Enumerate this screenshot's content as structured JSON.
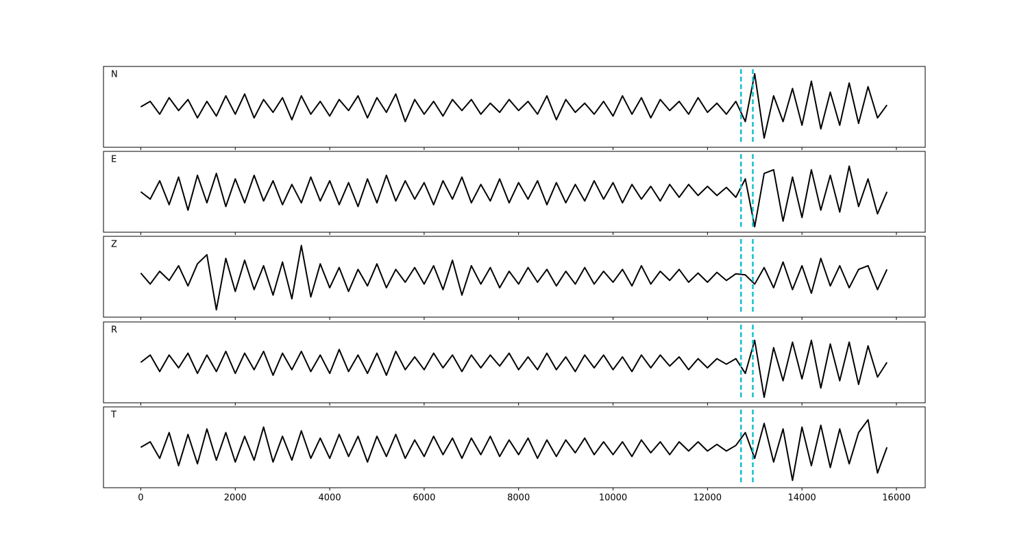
{
  "chart_data": {
    "type": "line",
    "x": [
      0,
      200,
      400,
      600,
      800,
      1000,
      1200,
      1400,
      1600,
      1800,
      2000,
      2200,
      2400,
      2600,
      2800,
      3000,
      3200,
      3400,
      3600,
      3800,
      4000,
      4200,
      4400,
      4600,
      4800,
      5000,
      5200,
      5400,
      5600,
      5800,
      6000,
      6200,
      6400,
      6600,
      6800,
      7000,
      7200,
      7400,
      7600,
      7800,
      8000,
      8200,
      8400,
      8600,
      8800,
      9000,
      9200,
      9400,
      9600,
      9800,
      10000,
      10200,
      10400,
      10600,
      10800,
      11000,
      11200,
      11400,
      11600,
      11800,
      12000,
      12200,
      12400,
      12600,
      12800,
      13000,
      13200,
      13400,
      13600,
      13800,
      14000,
      14200,
      14400,
      14600,
      14800,
      15000,
      15200,
      15400,
      15600,
      15800
    ],
    "series": [
      {
        "name": "N",
        "color": "#000000",
        "values": [
          0,
          0.15,
          -0.2,
          0.25,
          -0.1,
          0.2,
          -0.3,
          0.15,
          -0.25,
          0.3,
          -0.2,
          0.35,
          -0.3,
          0.2,
          -0.15,
          0.25,
          -0.35,
          0.3,
          -0.2,
          0.15,
          -0.25,
          0.2,
          -0.1,
          0.3,
          -0.3,
          0.25,
          -0.15,
          0.35,
          -0.4,
          0.2,
          -0.2,
          0.15,
          -0.25,
          0.2,
          -0.1,
          0.2,
          -0.2,
          0.1,
          -0.15,
          0.2,
          -0.1,
          0.15,
          -0.2,
          0.3,
          -0.35,
          0.2,
          -0.15,
          0.1,
          -0.2,
          0.15,
          -0.25,
          0.3,
          -0.2,
          0.25,
          -0.3,
          0.2,
          -0.1,
          0.15,
          -0.2,
          0.25,
          -0.15,
          0.1,
          -0.2,
          0.15,
          -0.4,
          0.9,
          -0.85,
          0.3,
          -0.4,
          0.5,
          -0.5,
          0.7,
          -0.6,
          0.4,
          -0.5,
          0.65,
          -0.45,
          0.55,
          -0.3,
          0.05
        ]
      },
      {
        "name": "E",
        "color": "#000000",
        "values": [
          0,
          -0.2,
          0.3,
          -0.35,
          0.4,
          -0.5,
          0.45,
          -0.3,
          0.5,
          -0.4,
          0.35,
          -0.3,
          0.45,
          -0.25,
          0.3,
          -0.35,
          0.2,
          -0.3,
          0.4,
          -0.25,
          0.3,
          -0.35,
          0.25,
          -0.4,
          0.35,
          -0.3,
          0.45,
          -0.25,
          0.3,
          -0.2,
          0.25,
          -0.35,
          0.3,
          -0.2,
          0.4,
          -0.3,
          0.2,
          -0.25,
          0.35,
          -0.3,
          0.25,
          -0.2,
          0.3,
          -0.35,
          0.25,
          -0.3,
          0.2,
          -0.25,
          0.3,
          -0.2,
          0.25,
          -0.3,
          0.2,
          -0.2,
          0.15,
          -0.25,
          0.2,
          -0.15,
          0.2,
          -0.1,
          0.15,
          -0.1,
          0.12,
          -0.15,
          0.35,
          -0.95,
          0.5,
          0.6,
          -0.8,
          0.4,
          -0.7,
          0.6,
          -0.5,
          0.45,
          -0.55,
          0.7,
          -0.4,
          0.35,
          -0.6,
          0
        ]
      },
      {
        "name": "Z",
        "color": "#000000",
        "values": [
          0.1,
          -0.2,
          0.15,
          -0.1,
          0.3,
          -0.25,
          0.35,
          0.6,
          -0.9,
          0.5,
          -0.4,
          0.45,
          -0.35,
          0.3,
          -0.5,
          0.4,
          -0.6,
          0.85,
          -0.55,
          0.35,
          -0.3,
          0.25,
          -0.4,
          0.2,
          -0.25,
          0.35,
          -0.3,
          0.2,
          -0.15,
          0.25,
          -0.2,
          0.3,
          -0.35,
          0.45,
          -0.5,
          0.3,
          -0.2,
          0.25,
          -0.3,
          0.15,
          -0.2,
          0.25,
          -0.15,
          0.2,
          -0.25,
          0.15,
          -0.2,
          0.25,
          -0.2,
          0.15,
          -0.15,
          0.2,
          -0.25,
          0.3,
          -0.2,
          0.15,
          -0.1,
          0.2,
          -0.15,
          0.1,
          -0.15,
          0.12,
          -0.1,
          0.08,
          0.05,
          -0.2,
          0.25,
          -0.3,
          0.4,
          -0.35,
          0.3,
          -0.45,
          0.5,
          -0.25,
          0.3,
          -0.3,
          0.2,
          0.3,
          -0.35,
          0.2
        ]
      },
      {
        "name": "R",
        "color": "#000000",
        "values": [
          0,
          0.2,
          -0.25,
          0.2,
          -0.15,
          0.25,
          -0.3,
          0.2,
          -0.25,
          0.3,
          -0.3,
          0.25,
          -0.2,
          0.3,
          -0.35,
          0.25,
          -0.2,
          0.3,
          -0.25,
          0.2,
          -0.3,
          0.35,
          -0.25,
          0.2,
          -0.3,
          0.25,
          -0.35,
          0.3,
          -0.2,
          0.15,
          -0.2,
          0.25,
          -0.15,
          0.2,
          -0.25,
          0.2,
          -0.15,
          0.2,
          -0.1,
          0.25,
          -0.2,
          0.15,
          -0.2,
          0.25,
          -0.2,
          0.15,
          -0.25,
          0.2,
          -0.15,
          0.2,
          -0.2,
          0.15,
          -0.25,
          0.2,
          -0.15,
          0.2,
          -0.1,
          0.15,
          -0.2,
          0.1,
          -0.15,
          0.1,
          -0.05,
          0.1,
          -0.3,
          0.6,
          -0.95,
          0.4,
          -0.5,
          0.55,
          -0.45,
          0.6,
          -0.7,
          0.5,
          -0.5,
          0.55,
          -0.6,
          0.45,
          -0.4,
          0
        ]
      },
      {
        "name": "T",
        "color": "#000000",
        "values": [
          0,
          0.15,
          -0.3,
          0.4,
          -0.5,
          0.35,
          -0.45,
          0.5,
          -0.35,
          0.4,
          -0.4,
          0.3,
          -0.35,
          0.55,
          -0.4,
          0.3,
          -0.35,
          0.45,
          -0.3,
          0.25,
          -0.3,
          0.35,
          -0.25,
          0.3,
          -0.4,
          0.3,
          -0.25,
          0.35,
          -0.3,
          0.2,
          -0.25,
          0.3,
          -0.2,
          0.25,
          -0.3,
          0.25,
          -0.2,
          0.3,
          -0.25,
          0.2,
          -0.2,
          0.25,
          -0.3,
          0.2,
          -0.25,
          0.2,
          -0.15,
          0.25,
          -0.2,
          0.15,
          -0.2,
          0.15,
          -0.25,
          0.2,
          -0.15,
          0.15,
          -0.2,
          0.15,
          -0.1,
          0.15,
          -0.1,
          0.08,
          -0.1,
          0.05,
          0.4,
          -0.3,
          0.65,
          -0.4,
          0.5,
          -0.9,
          0.55,
          -0.5,
          0.6,
          -0.55,
          0.5,
          -0.45,
          0.4,
          0.75,
          -0.7,
          0
        ]
      }
    ],
    "xlim": [
      -790,
      16610
    ],
    "xticks": [
      0,
      2000,
      4000,
      6000,
      8000,
      10000,
      12000,
      14000,
      16000
    ],
    "ylim": [
      -1.1,
      1.1
    ],
    "vlines": [
      12710,
      12960
    ],
    "vline_color": "#17becf"
  }
}
